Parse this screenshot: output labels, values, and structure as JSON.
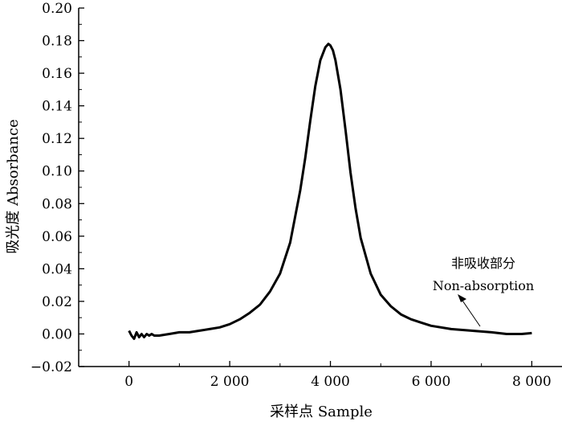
{
  "chart_data": {
    "type": "line",
    "title": "",
    "xlabel": "采样点 Sample",
    "ylabel": "吸光度 Absorbance",
    "xlim": [
      -1000,
      8600
    ],
    "ylim": [
      -0.02,
      0.2
    ],
    "xticks": [
      0,
      2000,
      4000,
      6000,
      8000
    ],
    "xtick_labels": [
      "0",
      "2 000",
      "4 000",
      "6 000",
      "8 000"
    ],
    "yticks": [
      -0.02,
      0.0,
      0.02,
      0.04,
      0.06,
      0.08,
      0.1,
      0.12,
      0.14,
      0.16,
      0.18,
      0.2
    ],
    "ytick_labels": [
      "−0.02",
      "0.00",
      "0.02",
      "0.04",
      "0.06",
      "0.08",
      "0.10",
      "0.12",
      "0.14",
      "0.16",
      "0.18",
      "0.20"
    ],
    "grid": false,
    "series": [
      {
        "x": [
          0,
          50,
          100,
          150,
          200,
          250,
          300,
          350,
          400,
          450,
          500,
          600,
          800,
          1000,
          1200,
          1400,
          1600,
          1800,
          2000,
          2200,
          2400,
          2600,
          2800,
          3000,
          3200,
          3400,
          3500,
          3600,
          3700,
          3800,
          3900,
          3960,
          4000,
          4050,
          4100,
          4200,
          4300,
          4400,
          4500,
          4600,
          4800,
          5000,
          5200,
          5400,
          5600,
          5800,
          6000,
          6400,
          6800,
          7200,
          7500,
          7800,
          8000
        ],
        "y": [
          0.002,
          -0.001,
          -0.003,
          0.001,
          -0.002,
          0.0,
          -0.002,
          0.0,
          -0.001,
          0.0,
          -0.001,
          -0.001,
          0.0,
          0.001,
          0.001,
          0.002,
          0.003,
          0.004,
          0.006,
          0.009,
          0.013,
          0.018,
          0.026,
          0.037,
          0.056,
          0.088,
          0.108,
          0.131,
          0.152,
          0.168,
          0.176,
          0.178,
          0.177,
          0.174,
          0.168,
          0.15,
          0.125,
          0.099,
          0.077,
          0.059,
          0.037,
          0.024,
          0.017,
          0.012,
          0.009,
          0.007,
          0.005,
          0.003,
          0.002,
          0.001,
          0.0,
          0.0,
          0.0005
        ]
      }
    ],
    "annotation": {
      "text_cn": "非吸收部分",
      "text_en": "Non-absorption",
      "target": [
        7400,
        0.001
      ]
    }
  }
}
